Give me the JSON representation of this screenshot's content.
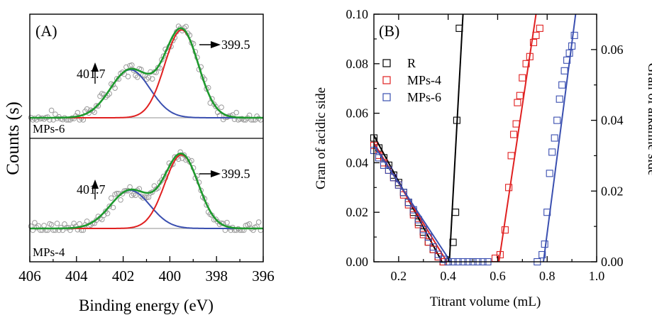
{
  "chart_data": [
    {
      "panel_label": "(A)",
      "type": "line",
      "xlabel": "Binding energy (eV)",
      "ylabel": "Counts (s)",
      "xlim": [
        406,
        396
      ],
      "x_ticks": [
        "406",
        "404",
        "402",
        "400",
        "398",
        "396"
      ],
      "subplots": [
        {
          "label": "MPs-6",
          "peaks": [
            {
              "center": 401.7,
              "height": 0.47,
              "width": 0.85,
              "color": "#3a4fb0",
              "label": "401.7"
            },
            {
              "center": 399.5,
              "height": 0.86,
              "width": 0.72,
              "color": "#e02020",
              "label": "399.5"
            }
          ],
          "envelope_color": "#1e9a2e",
          "markers": "open circles, grey"
        },
        {
          "label": "MPs-4",
          "peaks": [
            {
              "center": 401.7,
              "height": 0.43,
              "width": 0.85,
              "color": "#3a4fb0",
              "label": "401.7"
            },
            {
              "center": 399.5,
              "height": 0.83,
              "width": 0.72,
              "color": "#e02020",
              "label": "399.5"
            }
          ],
          "envelope_color": "#1e9a2e",
          "markers": "open circles, grey"
        }
      ]
    },
    {
      "panel_label": "(B)",
      "type": "scatter",
      "xlabel": "Titrant volume (mL)",
      "ylabel": "Gran of acidic side",
      "y2label": "Gran of alkaline side",
      "xlim": [
        0.1,
        1.0
      ],
      "ylim": [
        0,
        0.1
      ],
      "y2lim": [
        0,
        0.07
      ],
      "x_ticks": [
        "0.2",
        "0.4",
        "0.6",
        "0.8",
        "1.0"
      ],
      "y_ticks": [
        "0.00",
        "0.02",
        "0.04",
        "0.06",
        "0.08",
        "0.10"
      ],
      "y2_ticks": [
        "0.00",
        "0.02",
        "0.04",
        "0.06"
      ],
      "legend_position": "top-left",
      "series": [
        {
          "name": "R",
          "color": "#000000",
          "acidic_points": [
            [
              0.1,
              0.05
            ],
            [
              0.12,
              0.046
            ],
            [
              0.14,
              0.042
            ],
            [
              0.16,
              0.039
            ],
            [
              0.18,
              0.035
            ],
            [
              0.2,
              0.032
            ],
            [
              0.22,
              0.028
            ],
            [
              0.24,
              0.024
            ],
            [
              0.26,
              0.02
            ],
            [
              0.28,
              0.016
            ],
            [
              0.3,
              0.012
            ],
            [
              0.32,
              0.008
            ],
            [
              0.34,
              0.005
            ],
            [
              0.36,
              0.002
            ],
            [
              0.38,
              0.0
            ],
            [
              0.4,
              0.0
            ]
          ],
          "acidic_fit": [
            [
              0.1,
              0.051
            ],
            [
              0.375,
              0.0
            ]
          ],
          "alkaline_points": [
            [
              0.42,
              0.0055
            ],
            [
              0.43,
              0.014
            ],
            [
              0.435,
              0.04
            ],
            [
              0.445,
              0.066
            ]
          ],
          "alkaline_fit": [
            [
              0.405,
              0.0
            ],
            [
              0.46,
              0.07
            ]
          ]
        },
        {
          "name": "MPs-4",
          "color": "#e02020",
          "acidic_points": [
            [
              0.1,
              0.047
            ],
            [
              0.12,
              0.043
            ],
            [
              0.14,
              0.04
            ],
            [
              0.16,
              0.037
            ],
            [
              0.18,
              0.034
            ],
            [
              0.2,
              0.031
            ],
            [
              0.22,
              0.027
            ],
            [
              0.24,
              0.023
            ],
            [
              0.26,
              0.019
            ],
            [
              0.28,
              0.015
            ],
            [
              0.3,
              0.011
            ],
            [
              0.32,
              0.008
            ],
            [
              0.34,
              0.005
            ],
            [
              0.36,
              0.002
            ],
            [
              0.38,
              0.0
            ]
          ],
          "acidic_fit": [
            [
              0.1,
              0.048
            ],
            [
              0.395,
              0.0
            ]
          ],
          "alkaline_points": [
            [
              0.59,
              0.001
            ],
            [
              0.61,
              0.002
            ],
            [
              0.63,
              0.009
            ],
            [
              0.645,
              0.021
            ],
            [
              0.655,
              0.03
            ],
            [
              0.665,
              0.036
            ],
            [
              0.675,
              0.039
            ],
            [
              0.68,
              0.045
            ],
            [
              0.69,
              0.047
            ],
            [
              0.7,
              0.052
            ],
            [
              0.715,
              0.056
            ],
            [
              0.73,
              0.058
            ],
            [
              0.745,
              0.062
            ],
            [
              0.755,
              0.064
            ],
            [
              0.77,
              0.066
            ]
          ],
          "alkaline_fit": [
            [
              0.605,
              0.0
            ],
            [
              0.755,
              0.07
            ]
          ]
        },
        {
          "name": "MPs-6",
          "color": "#3a4fb0",
          "acidic_points": [
            [
              0.1,
              0.045
            ],
            [
              0.12,
              0.042
            ],
            [
              0.14,
              0.039
            ],
            [
              0.16,
              0.037
            ],
            [
              0.18,
              0.034
            ],
            [
              0.2,
              0.031
            ],
            [
              0.22,
              0.028
            ],
            [
              0.24,
              0.024
            ],
            [
              0.26,
              0.021
            ],
            [
              0.28,
              0.017
            ],
            [
              0.3,
              0.013
            ],
            [
              0.32,
              0.01
            ],
            [
              0.34,
              0.006
            ],
            [
              0.36,
              0.003
            ],
            [
              0.38,
              0.001
            ],
            [
              0.4,
              0.0
            ],
            [
              0.42,
              0.0
            ],
            [
              0.44,
              0.0
            ],
            [
              0.46,
              0.0
            ],
            [
              0.48,
              0.0
            ],
            [
              0.5,
              0.0
            ],
            [
              0.52,
              0.0
            ],
            [
              0.54,
              0.0
            ],
            [
              0.56,
              0.0
            ]
          ],
          "acidic_fit": [
            [
              0.1,
              0.047
            ],
            [
              0.41,
              0.0
            ]
          ],
          "alkaline_points": [
            [
              0.76,
              0.0
            ],
            [
              0.78,
              0.002
            ],
            [
              0.79,
              0.005
            ],
            [
              0.8,
              0.014
            ],
            [
              0.81,
              0.025
            ],
            [
              0.82,
              0.031
            ],
            [
              0.83,
              0.035
            ],
            [
              0.84,
              0.04
            ],
            [
              0.85,
              0.046
            ],
            [
              0.86,
              0.05
            ],
            [
              0.87,
              0.054
            ],
            [
              0.88,
              0.057
            ],
            [
              0.89,
              0.059
            ],
            [
              0.9,
              0.061
            ],
            [
              0.91,
              0.064
            ]
          ],
          "alkaline_fit": [
            [
              0.785,
              0.0
            ],
            [
              0.915,
              0.07
            ]
          ]
        }
      ]
    }
  ]
}
